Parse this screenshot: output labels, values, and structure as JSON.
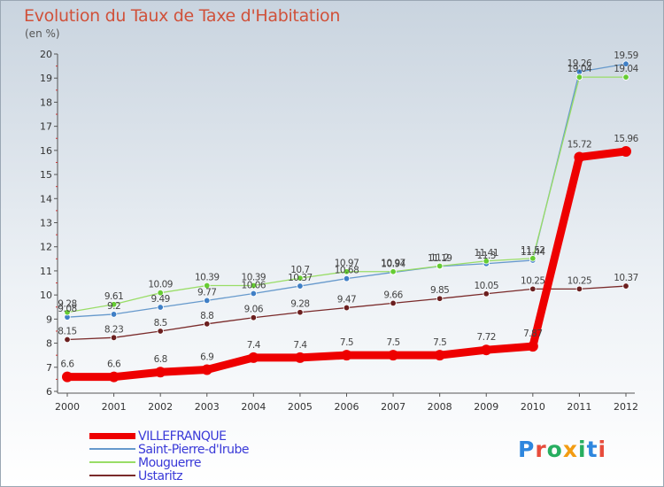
{
  "title": "Evolution du Taux de Taxe d'Habitation",
  "unit_label": "(en %)",
  "logo": {
    "text": "Proxiti",
    "colors": [
      "#2e86de",
      "#e74c3c",
      "#27ae60",
      "#f39c12",
      "#27ae60",
      "#2e86de",
      "#e74c3c"
    ]
  },
  "chart_data": {
    "type": "line",
    "x": [
      "2000",
      "2001",
      "2002",
      "2003",
      "2004",
      "2005",
      "2006",
      "2007",
      "2008",
      "2009",
      "2010",
      "2011",
      "2012"
    ],
    "ylim": [
      6,
      20
    ],
    "yticks": [
      "6",
      "7",
      "8",
      "9",
      "10",
      "11",
      "12",
      "13",
      "14",
      "15",
      "16",
      "17",
      "18",
      "19",
      "20"
    ],
    "grid": false,
    "legend_position": "bottom-left",
    "series": [
      {
        "name": "VILLEFRANQUE",
        "color": "#ee0000",
        "marker_color": "#ee0000",
        "values": [
          6.6,
          6.6,
          6.8,
          6.9,
          7.4,
          7.4,
          7.5,
          7.5,
          7.5,
          7.72,
          7.87,
          15.72,
          15.96
        ],
        "labels": [
          "6.6",
          "6.6",
          "6.8",
          "6.9",
          "7.4",
          "7.4",
          "7.5",
          "7.5",
          "7.5",
          "7.72",
          "7.87",
          "15.72",
          "15.96"
        ]
      },
      {
        "name": "Saint-Pierre-d'Irube",
        "color": "#6699cc",
        "marker_color": "#3f7fc6",
        "values": [
          9.08,
          9.2,
          9.49,
          9.77,
          10.06,
          10.37,
          10.68,
          10.94,
          11.19,
          11.3,
          11.44,
          19.26,
          19.59
        ],
        "labels": [
          "9.08",
          "9.2",
          "9.49",
          "9.77",
          "10.06",
          "10.37",
          "10.68",
          "10.94",
          "11.19",
          "11.3",
          "11.44",
          "19.26",
          "19.59"
        ]
      },
      {
        "name": "Mouguerre",
        "color": "#99dd66",
        "marker_color": "#66cc33",
        "values": [
          9.28,
          9.61,
          10.09,
          10.39,
          10.39,
          10.7,
          10.97,
          10.97,
          11.2,
          11.41,
          11.52,
          19.04,
          19.04
        ],
        "labels": [
          "9.28",
          "9.61",
          "10.09",
          "10.39",
          "10.39",
          "10.7",
          "10.97",
          "10.97",
          "11.2",
          "11.41",
          "11.52",
          "19.04",
          "19.04"
        ]
      },
      {
        "name": "Ustaritz",
        "color": "#7a2a2a",
        "marker_color": "#6b1f1f",
        "values": [
          8.15,
          8.23,
          8.5,
          8.8,
          9.06,
          9.28,
          9.47,
          9.66,
          9.85,
          10.05,
          10.25,
          10.25,
          10.37
        ],
        "labels": [
          "8.15",
          "8.23",
          "8.5",
          "8.8",
          "9.06",
          "9.28",
          "9.47",
          "9.66",
          "9.85",
          "10.05",
          "10.25",
          "10.25",
          "10.37"
        ]
      }
    ]
  }
}
